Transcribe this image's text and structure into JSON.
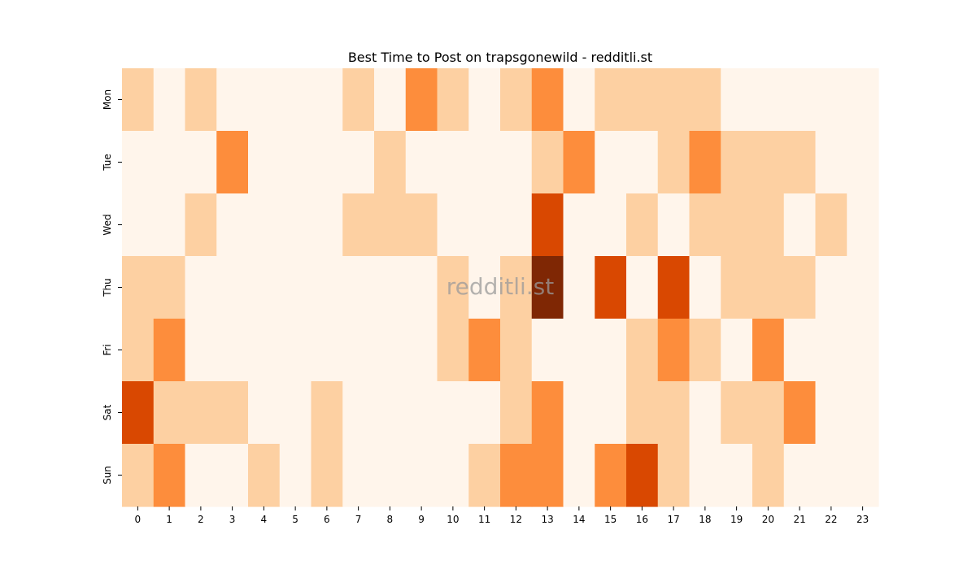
{
  "chart_data": {
    "type": "heatmap",
    "title": "Best Time to Post on trapsgonewild - redditli.st",
    "watermark": "redditli.st",
    "xlabel": "",
    "ylabel": "",
    "x_categories": [
      "0",
      "1",
      "2",
      "3",
      "4",
      "5",
      "6",
      "7",
      "8",
      "9",
      "10",
      "11",
      "12",
      "13",
      "14",
      "15",
      "16",
      "17",
      "18",
      "19",
      "20",
      "21",
      "22",
      "23"
    ],
    "y_categories": [
      "Mon",
      "Tue",
      "Wed",
      "Thu",
      "Fri",
      "Sat",
      "Sun"
    ],
    "value_range": [
      0,
      4
    ],
    "colorscale": [
      "#fff5eb",
      "#fdd0a2",
      "#fd8d3c",
      "#d94801",
      "#7f2704"
    ],
    "values": [
      [
        1,
        0,
        1,
        0,
        0,
        0,
        0,
        1,
        0,
        2,
        1,
        0,
        1,
        2,
        0,
        1,
        1,
        1,
        1,
        0,
        0,
        0,
        0,
        0
      ],
      [
        0,
        0,
        0,
        2,
        0,
        0,
        0,
        0,
        1,
        0,
        0,
        0,
        0,
        1,
        2,
        0,
        0,
        1,
        2,
        1,
        1,
        1,
        0,
        0
      ],
      [
        0,
        0,
        1,
        0,
        0,
        0,
        0,
        1,
        1,
        1,
        0,
        0,
        0,
        3,
        0,
        0,
        1,
        0,
        1,
        1,
        1,
        0,
        1,
        0
      ],
      [
        1,
        1,
        0,
        0,
        0,
        0,
        0,
        0,
        0,
        0,
        1,
        0,
        1,
        4,
        0,
        3,
        0,
        3,
        0,
        1,
        1,
        1,
        0,
        0
      ],
      [
        1,
        2,
        0,
        0,
        0,
        0,
        0,
        0,
        0,
        0,
        1,
        2,
        1,
        0,
        0,
        0,
        1,
        2,
        1,
        0,
        2,
        0,
        0,
        0
      ],
      [
        3,
        1,
        1,
        1,
        0,
        0,
        1,
        0,
        0,
        0,
        0,
        0,
        1,
        2,
        0,
        0,
        1,
        1,
        0,
        1,
        1,
        2,
        0,
        0
      ],
      [
        1,
        2,
        0,
        0,
        1,
        0,
        1,
        0,
        0,
        0,
        0,
        1,
        2,
        2,
        0,
        2,
        3,
        1,
        0,
        0,
        1,
        0,
        0,
        0
      ]
    ]
  }
}
